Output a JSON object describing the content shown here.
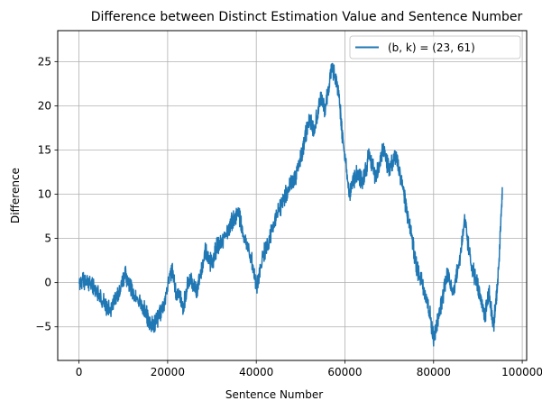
{
  "chart_data": {
    "type": "line",
    "title": "Difference between Distinct Estimation Value and Sentence Number",
    "xlabel": "Sentence Number",
    "ylabel": "Difference",
    "xlim": [
      -4800,
      101000
    ],
    "ylim": [
      -8.8,
      28.5
    ],
    "xticks": [
      0,
      20000,
      40000,
      60000,
      80000,
      100000
    ],
    "xtick_labels": [
      "0",
      "20000",
      "40000",
      "60000",
      "80000",
      "100000"
    ],
    "yticks": [
      -5,
      0,
      5,
      10,
      15,
      20,
      25
    ],
    "ytick_labels": [
      "−5",
      "0",
      "5",
      "10",
      "15",
      "20",
      "25"
    ],
    "grid": true,
    "legend_position": "top-right",
    "series": [
      {
        "name": "(b, k) = (23, 61)",
        "color": "#1f77b4",
        "x": [
          0,
          2000,
          4000,
          6000,
          7000,
          9000,
          10500,
          12000,
          14000,
          15500,
          16500,
          17500,
          19000,
          21000,
          22000,
          23500,
          25000,
          26500,
          28500,
          30000,
          31000,
          32000,
          34000,
          35000,
          36000,
          37000,
          39000,
          40000,
          41500,
          43000,
          44500,
          46000,
          47500,
          49000,
          50500,
          52000,
          53000,
          54500,
          55500,
          57000,
          58500,
          59500,
          61000,
          62500,
          64000,
          65500,
          67000,
          68500,
          70000,
          71500,
          73000,
          74000,
          75000,
          76000,
          77500,
          79000,
          80000,
          81500,
          83000,
          84500,
          86000,
          87000,
          88500,
          90000,
          91500,
          92500,
          93500,
          94500,
          95500
        ],
        "y": [
          0,
          0.3,
          -1.0,
          -2.5,
          -3.0,
          -1.0,
          1.0,
          -1.0,
          -2.5,
          -4.0,
          -5.0,
          -4.5,
          -2.5,
          1.5,
          -1.5,
          -2.5,
          0.5,
          -1.0,
          3.5,
          2.0,
          4.0,
          4.5,
          6.5,
          7.0,
          8.0,
          5.5,
          2.5,
          -0.5,
          3.0,
          5.0,
          7.5,
          9.0,
          11.0,
          12.0,
          15.0,
          19.0,
          17.0,
          21.0,
          19.5,
          24.5,
          22.0,
          16.0,
          10.0,
          12.5,
          11.5,
          14.5,
          12.0,
          15.0,
          13.0,
          14.5,
          11.0,
          8.0,
          5.5,
          2.0,
          0.0,
          -3.0,
          -6.5,
          -3.0,
          1.0,
          -1.0,
          3.0,
          7.0,
          2.0,
          -0.5,
          -4.0,
          -1.0,
          -5.0,
          0.0,
          10.0
        ]
      }
    ]
  }
}
